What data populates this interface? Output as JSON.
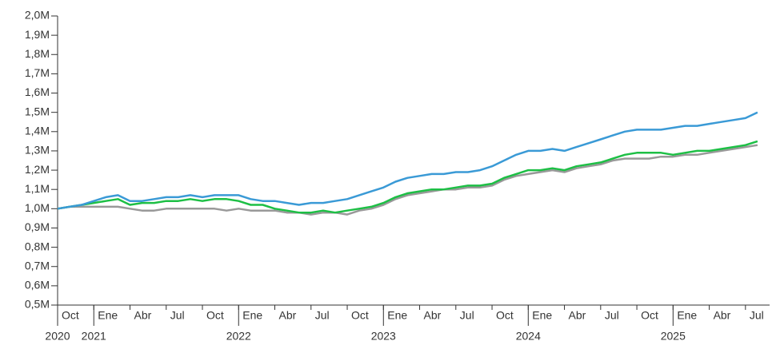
{
  "chart_data": {
    "type": "line",
    "x": [
      "2020-10",
      "2020-11",
      "2020-12",
      "2021-01",
      "2021-02",
      "2021-03",
      "2021-04",
      "2021-05",
      "2021-06",
      "2021-07",
      "2021-08",
      "2021-09",
      "2021-10",
      "2021-11",
      "2021-12",
      "2022-01",
      "2022-02",
      "2022-03",
      "2022-04",
      "2022-05",
      "2022-06",
      "2022-07",
      "2022-08",
      "2022-09",
      "2022-10",
      "2022-11",
      "2022-12",
      "2023-01",
      "2023-02",
      "2023-03",
      "2023-04",
      "2023-05",
      "2023-06",
      "2023-07",
      "2023-08",
      "2023-09",
      "2023-10",
      "2023-11",
      "2023-12",
      "2024-01",
      "2024-02",
      "2024-03",
      "2024-04",
      "2024-05",
      "2024-06",
      "2024-07",
      "2024-08",
      "2024-09",
      "2024-10",
      "2024-11",
      "2024-12",
      "2025-01",
      "2025-02",
      "2025-03",
      "2025-04",
      "2025-05",
      "2025-06",
      "2025-07",
      "2025-08"
    ],
    "series": [
      {
        "color": "#999999",
        "values": [
          1.0,
          1.01,
          1.01,
          1.01,
          1.01,
          1.01,
          1.0,
          0.99,
          0.99,
          1.0,
          1.0,
          1.0,
          1.0,
          1.0,
          0.99,
          1.0,
          0.99,
          0.99,
          0.99,
          0.98,
          0.98,
          0.97,
          0.98,
          0.98,
          0.97,
          0.99,
          1.0,
          1.02,
          1.05,
          1.07,
          1.08,
          1.09,
          1.1,
          1.1,
          1.11,
          1.11,
          1.12,
          1.15,
          1.17,
          1.18,
          1.19,
          1.2,
          1.19,
          1.21,
          1.22,
          1.23,
          1.25,
          1.26,
          1.26,
          1.26,
          1.27,
          1.27,
          1.28,
          1.28,
          1.29,
          1.3,
          1.31,
          1.32,
          1.33
        ]
      },
      {
        "color": "#1dbf45",
        "values": [
          1.0,
          1.01,
          1.02,
          1.03,
          1.04,
          1.05,
          1.02,
          1.03,
          1.03,
          1.04,
          1.04,
          1.05,
          1.04,
          1.05,
          1.05,
          1.04,
          1.02,
          1.02,
          1.0,
          0.99,
          0.98,
          0.98,
          0.99,
          0.98,
          0.99,
          1.0,
          1.01,
          1.03,
          1.06,
          1.08,
          1.09,
          1.1,
          1.1,
          1.11,
          1.12,
          1.12,
          1.13,
          1.16,
          1.18,
          1.2,
          1.2,
          1.21,
          1.2,
          1.22,
          1.23,
          1.24,
          1.26,
          1.28,
          1.29,
          1.29,
          1.29,
          1.28,
          1.29,
          1.3,
          1.3,
          1.31,
          1.32,
          1.33,
          1.35
        ]
      },
      {
        "color": "#3a9ad6",
        "values": [
          1.0,
          1.01,
          1.02,
          1.04,
          1.06,
          1.07,
          1.04,
          1.04,
          1.05,
          1.06,
          1.06,
          1.07,
          1.06,
          1.07,
          1.07,
          1.07,
          1.05,
          1.04,
          1.04,
          1.03,
          1.02,
          1.03,
          1.03,
          1.04,
          1.05,
          1.07,
          1.09,
          1.11,
          1.14,
          1.16,
          1.17,
          1.18,
          1.18,
          1.19,
          1.19,
          1.2,
          1.22,
          1.25,
          1.28,
          1.3,
          1.3,
          1.31,
          1.3,
          1.32,
          1.34,
          1.36,
          1.38,
          1.4,
          1.41,
          1.41,
          1.41,
          1.42,
          1.43,
          1.43,
          1.44,
          1.45,
          1.46,
          1.47,
          1.5
        ]
      }
    ],
    "xlim": [
      "2020-10",
      "2025-09"
    ],
    "xticks": [
      {
        "value": "2020-10",
        "label": "Oct"
      },
      {
        "value": "2021-01",
        "label": "Ene"
      },
      {
        "value": "2021-04",
        "label": "Abr"
      },
      {
        "value": "2021-07",
        "label": "Jul"
      },
      {
        "value": "2021-10",
        "label": "Oct"
      },
      {
        "value": "2022-01",
        "label": "Ene"
      },
      {
        "value": "2022-04",
        "label": "Abr"
      },
      {
        "value": "2022-07",
        "label": "Jul"
      },
      {
        "value": "2022-10",
        "label": "Oct"
      },
      {
        "value": "2023-01",
        "label": "Ene"
      },
      {
        "value": "2023-04",
        "label": "Abr"
      },
      {
        "value": "2023-07",
        "label": "Jul"
      },
      {
        "value": "2023-10",
        "label": "Oct"
      },
      {
        "value": "2024-01",
        "label": "Ene"
      },
      {
        "value": "2024-04",
        "label": "Abr"
      },
      {
        "value": "2024-07",
        "label": "Jul"
      },
      {
        "value": "2024-10",
        "label": "Oct"
      },
      {
        "value": "2025-01",
        "label": "Ene"
      },
      {
        "value": "2025-04",
        "label": "Abr"
      },
      {
        "value": "2025-07",
        "label": "Jul"
      }
    ],
    "year_ticks": [
      {
        "value": "2020-10",
        "label": "2020"
      },
      {
        "value": "2021-01",
        "label": "2021"
      },
      {
        "value": "2022-01",
        "label": "2022"
      },
      {
        "value": "2023-01",
        "label": "2023"
      },
      {
        "value": "2024-01",
        "label": "2024"
      },
      {
        "value": "2025-01",
        "label": "2025"
      }
    ],
    "ylim": [
      0.5,
      2.0
    ],
    "yticks": [
      {
        "value": 0.5,
        "label": "0,5M"
      },
      {
        "value": 0.6,
        "label": "0,6M"
      },
      {
        "value": 0.7,
        "label": "0,7M"
      },
      {
        "value": 0.8,
        "label": "0,8M"
      },
      {
        "value": 0.9,
        "label": "0,9M"
      },
      {
        "value": 1.0,
        "label": "1,0M"
      },
      {
        "value": 1.1,
        "label": "1,1M"
      },
      {
        "value": 1.2,
        "label": "1,2M"
      },
      {
        "value": 1.3,
        "label": "1,3M"
      },
      {
        "value": 1.4,
        "label": "1,4M"
      },
      {
        "value": 1.5,
        "label": "1,5M"
      },
      {
        "value": 1.6,
        "label": "1,6M"
      },
      {
        "value": 1.7,
        "label": "1,7M"
      },
      {
        "value": 1.8,
        "label": "1,8M"
      },
      {
        "value": 1.9,
        "label": "1,9M"
      },
      {
        "value": 2.0,
        "label": "2,0M"
      }
    ]
  }
}
